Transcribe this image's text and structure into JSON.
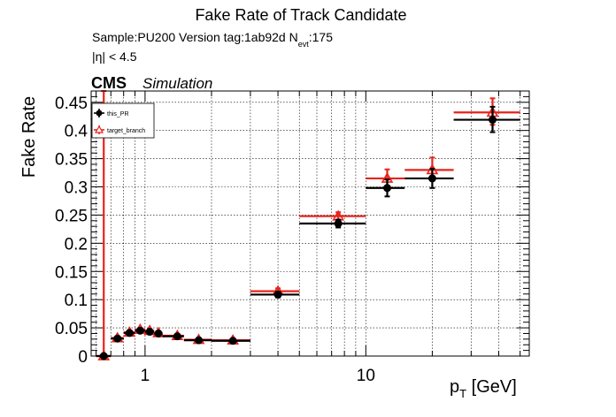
{
  "header": {
    "title": "Fake Rate of Track Candidate",
    "sample_line_prefix": "Sample:PU200   Version tag:1ab92d  N",
    "sample_line_sub": "evt",
    "sample_line_suffix": ":175",
    "eta_cut": "|η| < 4.5",
    "cms_label": "CMS",
    "simulation_label": "Simulation"
  },
  "colors": {
    "this_PR": "#000000",
    "target_branch": "#e8231a",
    "grid": "#000000",
    "frame": "#000000"
  },
  "chart_data": {
    "type": "scatter",
    "title": "Fake Rate of Track Candidate",
    "xlabel_main": "p",
    "xlabel_sub": "T",
    "xlabel_unit": " [GeV]",
    "ylabel": "Fake Rate",
    "x_scale": "log",
    "xlim": [
      0.57,
      55
    ],
    "ylim": [
      0,
      0.47
    ],
    "grid": true,
    "legend_position": "top-left",
    "x_tick_labels": [
      {
        "value": 1,
        "label": "1"
      },
      {
        "value": 10,
        "label": "10"
      }
    ],
    "y_tick_labels": [
      "0",
      "0.05",
      "0.1",
      "0.15",
      "0.2",
      "0.25",
      "0.3",
      "0.35",
      "0.4",
      "0.45"
    ],
    "y_tick_values": [
      0,
      0.05,
      0.1,
      0.15,
      0.2,
      0.25,
      0.3,
      0.35,
      0.4,
      0.45
    ],
    "series": [
      {
        "name": "this_PR",
        "marker": "filled-circle",
        "points": [
          {
            "x": 0.65,
            "xlo": 0.6,
            "xhi": 0.7,
            "y": 0.0,
            "ylo": 0.0,
            "yhi": 0.0
          },
          {
            "x": 0.75,
            "xlo": 0.7,
            "xhi": 0.8,
            "y": 0.031,
            "ylo": 0.028,
            "yhi": 0.034
          },
          {
            "x": 0.85,
            "xlo": 0.8,
            "xhi": 0.9,
            "y": 0.041,
            "ylo": 0.038,
            "yhi": 0.044
          },
          {
            "x": 0.95,
            "xlo": 0.9,
            "xhi": 1.0,
            "y": 0.045,
            "ylo": 0.042,
            "yhi": 0.048
          },
          {
            "x": 1.05,
            "xlo": 1.0,
            "xhi": 1.1,
            "y": 0.043,
            "ylo": 0.04,
            "yhi": 0.046
          },
          {
            "x": 1.15,
            "xlo": 1.1,
            "xhi": 1.2,
            "y": 0.04,
            "ylo": 0.037,
            "yhi": 0.043
          },
          {
            "x": 1.4,
            "xlo": 1.2,
            "xhi": 1.5,
            "y": 0.035,
            "ylo": 0.032,
            "yhi": 0.038
          },
          {
            "x": 1.75,
            "xlo": 1.5,
            "xhi": 2.0,
            "y": 0.028,
            "ylo": 0.025,
            "yhi": 0.031
          },
          {
            "x": 2.5,
            "xlo": 2.0,
            "xhi": 3.0,
            "y": 0.027,
            "ylo": 0.024,
            "yhi": 0.03
          },
          {
            "x": 4.0,
            "xlo": 3.0,
            "xhi": 5.0,
            "y": 0.109,
            "ylo": 0.104,
            "yhi": 0.114
          },
          {
            "x": 7.5,
            "xlo": 5.0,
            "xhi": 10.0,
            "y": 0.235,
            "ylo": 0.228,
            "yhi": 0.242
          },
          {
            "x": 12.5,
            "xlo": 10.0,
            "xhi": 15.0,
            "y": 0.298,
            "ylo": 0.283,
            "yhi": 0.313
          },
          {
            "x": 20.0,
            "xlo": 15.0,
            "xhi": 25.0,
            "y": 0.315,
            "ylo": 0.298,
            "yhi": 0.332
          },
          {
            "x": 37.5,
            "xlo": 25.0,
            "xhi": 50.0,
            "y": 0.419,
            "ylo": 0.397,
            "yhi": 0.442
          }
        ]
      },
      {
        "name": "target_branch",
        "marker": "open-triangle",
        "points": [
          {
            "x": 0.65,
            "xlo": 0.6,
            "xhi": 0.7,
            "y": 0.0,
            "ylo": 0.0,
            "yhi": 0.485
          },
          {
            "x": 0.75,
            "xlo": 0.7,
            "xhi": 0.8,
            "y": 0.032,
            "ylo": 0.029,
            "yhi": 0.035
          },
          {
            "x": 0.85,
            "xlo": 0.8,
            "xhi": 0.9,
            "y": 0.042,
            "ylo": 0.039,
            "yhi": 0.045
          },
          {
            "x": 0.95,
            "xlo": 0.9,
            "xhi": 1.0,
            "y": 0.047,
            "ylo": 0.044,
            "yhi": 0.05
          },
          {
            "x": 1.05,
            "xlo": 1.0,
            "xhi": 1.1,
            "y": 0.045,
            "ylo": 0.042,
            "yhi": 0.048
          },
          {
            "x": 1.15,
            "xlo": 1.1,
            "xhi": 1.2,
            "y": 0.041,
            "ylo": 0.038,
            "yhi": 0.044
          },
          {
            "x": 1.4,
            "xlo": 1.2,
            "xhi": 1.5,
            "y": 0.036,
            "ylo": 0.033,
            "yhi": 0.039
          },
          {
            "x": 1.75,
            "xlo": 1.5,
            "xhi": 2.0,
            "y": 0.029,
            "ylo": 0.026,
            "yhi": 0.032
          },
          {
            "x": 2.5,
            "xlo": 2.0,
            "xhi": 3.0,
            "y": 0.028,
            "ylo": 0.025,
            "yhi": 0.031
          },
          {
            "x": 4.0,
            "xlo": 3.0,
            "xhi": 5.0,
            "y": 0.115,
            "ylo": 0.11,
            "yhi": 0.12
          },
          {
            "x": 7.5,
            "xlo": 5.0,
            "xhi": 10.0,
            "y": 0.248,
            "ylo": 0.241,
            "yhi": 0.255
          },
          {
            "x": 12.5,
            "xlo": 10.0,
            "xhi": 15.0,
            "y": 0.315,
            "ylo": 0.299,
            "yhi": 0.331
          },
          {
            "x": 20.0,
            "xlo": 15.0,
            "xhi": 25.0,
            "y": 0.33,
            "ylo": 0.313,
            "yhi": 0.352
          },
          {
            "x": 37.5,
            "xlo": 25.0,
            "xhi": 50.0,
            "y": 0.432,
            "ylo": 0.41,
            "yhi": 0.457
          }
        ]
      }
    ]
  }
}
